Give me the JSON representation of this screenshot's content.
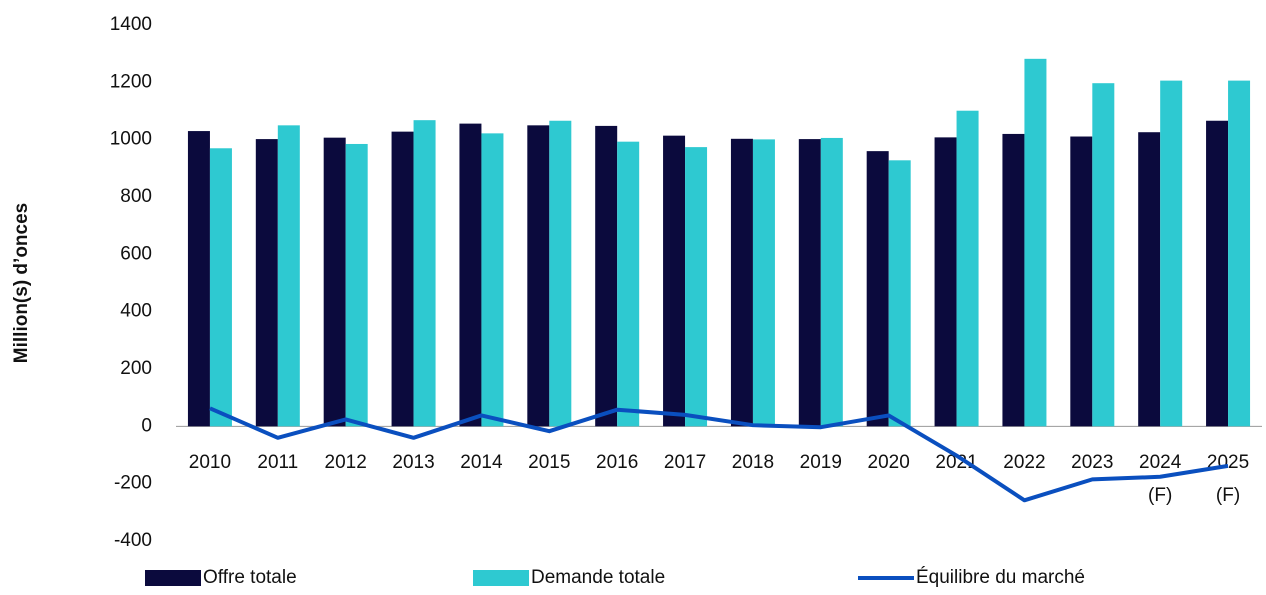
{
  "chart_data": {
    "type": "bar",
    "y_label": "Million(s) d’onces",
    "categories": [
      "2010",
      "2011",
      "2012",
      "2013",
      "2014",
      "2015",
      "2016",
      "2017",
      "2018",
      "2019",
      "2020",
      "2021",
      "2022",
      "2023",
      "2024 (F)",
      "2025 (F)"
    ],
    "series": [
      {
        "name": "Offre totale",
        "color": "#0b0a3d",
        "type": "bar",
        "values": [
          1030,
          1002,
          1007,
          1028,
          1056,
          1050,
          1048,
          1014,
          1003,
          1002,
          960,
          1008,
          1020,
          1011,
          1026,
          1066
        ]
      },
      {
        "name": "Demande totale",
        "color": "#2ec9d1",
        "type": "bar",
        "values": [
          970,
          1050,
          985,
          1068,
          1022,
          1066,
          993,
          974,
          1001,
          1006,
          928,
          1101,
          1282,
          1197,
          1206,
          1206
        ]
      },
      {
        "name": "Équilibre du marché",
        "color": "#0a4fbf",
        "type": "line",
        "values": [
          63,
          -40,
          24,
          -40,
          38,
          -17,
          58,
          40,
          4,
          -3,
          38,
          -102,
          -258,
          -185,
          -176,
          -138
        ]
      }
    ],
    "ylim": [
      -400,
      1400
    ],
    "yticks": [
      -400,
      -200,
      0,
      200,
      400,
      600,
      800,
      1000,
      1200,
      1400
    ],
    "grid": false
  }
}
